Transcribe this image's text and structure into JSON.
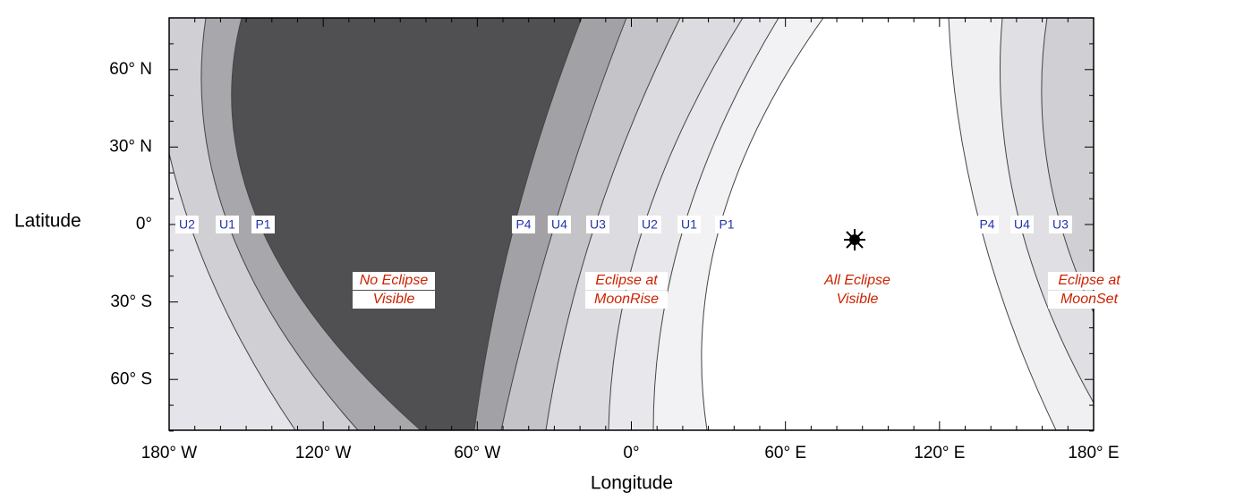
{
  "map": {
    "y_axis": {
      "title": "Latitude",
      "ticks": [
        "60° N",
        "30° N",
        "0°",
        "30° S",
        "60° S"
      ]
    },
    "x_axis": {
      "title": "Longitude",
      "ticks": [
        "180° W",
        "120° W",
        "60° W",
        "0°",
        "60° E",
        "120° E",
        "180° E"
      ]
    },
    "contacts": [
      "U2",
      "U1",
      "P1",
      "P4",
      "U4",
      "U3",
      "U2",
      "U1",
      "P1",
      "P4",
      "U4",
      "U3"
    ],
    "regions": [
      {
        "lines": [
          "No Eclipse",
          "Visible"
        ]
      },
      {
        "lines": [
          "Eclipse at",
          "MoonRise"
        ]
      },
      {
        "lines": [
          "All Eclipse",
          "Visible"
        ]
      },
      {
        "lines": [
          "Eclipse at",
          "MoonSet"
        ]
      }
    ]
  }
}
